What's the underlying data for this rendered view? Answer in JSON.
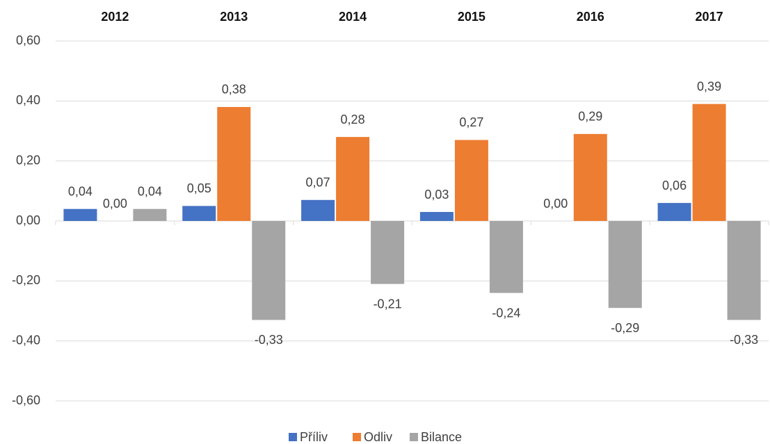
{
  "chart_data": {
    "type": "bar",
    "categories": [
      "2012",
      "2013",
      "2014",
      "2015",
      "2016",
      "2017"
    ],
    "series": [
      {
        "name": "Příliv",
        "color": "#4472c4",
        "values": [
          0.04,
          0.05,
          0.07,
          0.03,
          0.0,
          0.06
        ],
        "value_labels": [
          "0,04",
          "0,05",
          "0,07",
          "0,03",
          "0,00",
          "0,06"
        ]
      },
      {
        "name": "Odliv",
        "color": "#ed7d31",
        "values": [
          0.0,
          0.38,
          0.28,
          0.27,
          0.29,
          0.39
        ],
        "value_labels": [
          "0,00",
          "0,38",
          "0,28",
          "0,27",
          "0,29",
          "0,39"
        ]
      },
      {
        "name": "Bilance",
        "color": "#a5a5a5",
        "values": [
          0.04,
          -0.33,
          -0.21,
          -0.24,
          -0.29,
          -0.33
        ],
        "value_labels": [
          "0,04",
          "-0,33",
          "-0,21",
          "-0,24",
          "-0,29",
          "-0,33"
        ]
      }
    ],
    "ylim": [
      -0.6,
      0.6
    ],
    "yticks": [
      {
        "value": -0.6,
        "label": "-0,60"
      },
      {
        "value": -0.4,
        "label": "-0,40"
      },
      {
        "value": -0.2,
        "label": "-0,20"
      },
      {
        "value": 0,
        "label": "0,00"
      },
      {
        "value": 0.2,
        "label": "0,20"
      },
      {
        "value": 0.4,
        "label": "0,40"
      },
      {
        "value": 0.6,
        "label": "0,60"
      }
    ],
    "grid": true,
    "legend": "bottom"
  }
}
